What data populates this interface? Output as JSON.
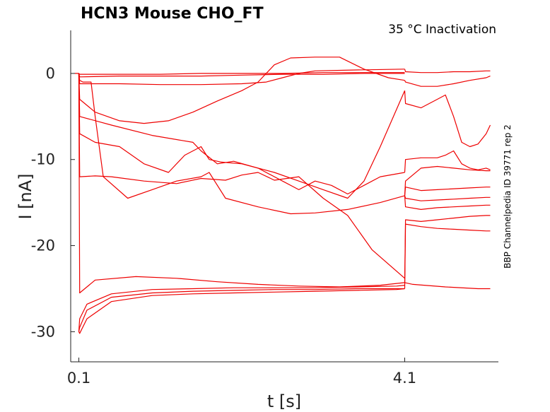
{
  "chart_data": {
    "type": "line",
    "title": "HCN3  Mouse  CHO_FT",
    "subtitle": "35 °C  Inactivation",
    "side_label": "BBP Channelpedia ID 39771 rep 2",
    "xlabel": "t [s]",
    "ylabel": "I [nA]",
    "xlim": [
      0.0,
      5.25
    ],
    "ylim": [
      -33.5,
      5
    ],
    "xticks": [
      0.1,
      4.1
    ],
    "xtick_labels": [
      "0.1",
      "4.1"
    ],
    "yticks": [
      0,
      -10,
      -20,
      -30
    ],
    "ytick_labels": [
      "0",
      "-10",
      "-20",
      "-30"
    ],
    "grid": false,
    "line_color": "#ee0000",
    "series": [
      {
        "x": [
          0.05,
          0.1,
          0.11,
          0.3,
          0.8,
          1.3,
          1.8,
          2.3,
          2.8,
          3.3,
          3.8,
          4.1,
          4.2,
          4.6,
          5.0,
          5.15
        ],
        "y": [
          0,
          0,
          -25.5,
          -24.0,
          -23.6,
          -23.8,
          -24.2,
          -24.5,
          -24.7,
          -24.8,
          -24.6,
          -24.3,
          -24.5,
          -24.8,
          -25.0,
          -25.0
        ]
      },
      {
        "x": [
          0.1,
          0.11,
          0.2,
          0.5,
          1.0,
          1.5,
          2.0,
          2.5,
          3.0,
          3.5,
          4.0,
          4.1
        ],
        "y": [
          -30,
          -28.5,
          -26.8,
          -25.6,
          -25.1,
          -25.0,
          -24.9,
          -24.9,
          -24.9,
          -24.8,
          -24.7,
          -24.6
        ]
      },
      {
        "x": [
          0.1,
          0.11,
          0.2,
          0.5,
          1.0,
          1.5,
          2.0,
          2.5,
          3.0,
          3.5,
          4.0,
          4.1
        ],
        "y": [
          -30,
          -29.5,
          -27.5,
          -26.0,
          -25.5,
          -25.3,
          -25.2,
          -25.1,
          -25.1,
          -25.0,
          -25.0,
          -25.0
        ]
      },
      {
        "x": [
          0.1,
          0.11,
          0.2,
          0.5,
          1.0,
          1.5,
          2.0,
          2.5,
          3.0,
          3.5,
          4.0,
          4.1
        ],
        "y": [
          -30,
          -30.2,
          -28.5,
          -26.5,
          -25.8,
          -25.6,
          -25.5,
          -25.4,
          -25.3,
          -25.2,
          -25.1,
          -25.0
        ]
      },
      {
        "x": [
          0.1,
          0.11,
          0.3,
          0.5,
          0.9,
          1.3,
          1.6,
          1.9,
          2.1,
          2.3,
          2.5,
          2.8,
          3.1,
          3.4,
          3.7,
          4.1
        ],
        "y": [
          0,
          -12.0,
          -11.9,
          -12.0,
          -12.5,
          -12.8,
          -12.2,
          -12.4,
          -11.8,
          -11.5,
          -12.4,
          -12.0,
          -14.5,
          -16.5,
          -20.5,
          -23.8
        ]
      },
      {
        "x": [
          0.1,
          0.11,
          0.15,
          0.25,
          0.3,
          0.4,
          0.7,
          1.0,
          1.3,
          1.6,
          1.7,
          1.9,
          2.3,
          2.7,
          3.0,
          3.4,
          3.8,
          4.1
        ],
        "y": [
          0,
          -0.8,
          -1.0,
          -1.0,
          -5.0,
          -12.0,
          -14.5,
          -13.5,
          -12.5,
          -12.0,
          -11.5,
          -14.5,
          -15.5,
          -16.3,
          -16.2,
          -15.8,
          -15.0,
          -14.2
        ]
      },
      {
        "x": [
          0.1,
          0.11,
          0.5,
          1.0,
          1.5,
          1.6,
          1.8,
          2.0,
          2.3,
          2.6,
          2.8,
          3.0,
          3.2,
          3.4,
          3.6,
          3.8,
          4.1
        ],
        "y": [
          0,
          -5.0,
          -6.0,
          -7.2,
          -8.0,
          -9.0,
          -10.5,
          -10.2,
          -11.0,
          -12.5,
          -13.5,
          -12.5,
          -13.0,
          -14.0,
          -13.0,
          -12.0,
          -11.5
        ]
      },
      {
        "x": [
          0.1,
          0.11,
          0.3,
          0.6,
          0.9,
          1.2,
          1.4,
          1.6,
          1.7,
          1.85,
          2.1,
          2.5,
          2.8,
          3.1,
          3.4,
          3.6,
          3.8,
          4.1
        ],
        "y": [
          0,
          -7.0,
          -8.0,
          -8.5,
          -10.5,
          -11.5,
          -9.5,
          -8.5,
          -10.0,
          -10.3,
          -10.5,
          -11.5,
          -12.5,
          -13.5,
          -14.5,
          -12.5,
          -8.5,
          -2.0
        ]
      },
      {
        "x": [
          0.1,
          0.11,
          0.3,
          0.6,
          0.9,
          1.2,
          1.5,
          1.8,
          2.1,
          2.3,
          2.5,
          2.7,
          3.0,
          3.3,
          3.6,
          3.9,
          4.1
        ],
        "y": [
          0,
          -3.0,
          -4.5,
          -5.5,
          -5.8,
          -5.5,
          -4.5,
          -3.2,
          -2.0,
          -1.0,
          1.0,
          1.8,
          1.9,
          1.9,
          0.5,
          -0.5,
          -0.8
        ]
      },
      {
        "x": [
          0.1,
          0.11,
          0.6,
          1.1,
          1.6,
          2.1,
          2.4,
          2.6,
          2.8,
          3.0,
          3.5,
          4.1
        ],
        "y": [
          0,
          -1.2,
          -1.2,
          -1.3,
          -1.3,
          -1.2,
          -1.0,
          -0.5,
          0.0,
          0.3,
          0.4,
          0.5
        ]
      },
      {
        "x": [
          0.1,
          0.11,
          0.6,
          1.1,
          1.6,
          2.1,
          2.6,
          3.1,
          3.6,
          4.1
        ],
        "y": [
          0,
          -0.4,
          -0.3,
          -0.3,
          -0.3,
          -0.2,
          -0.1,
          -0.1,
          0.0,
          0.0
        ]
      },
      {
        "x": [
          0.1,
          0.11,
          0.6,
          1.1,
          1.6,
          2.1,
          2.6,
          3.1,
          3.6,
          4.1
        ],
        "y": [
          0,
          -0.1,
          -0.1,
          -0.1,
          0.0,
          0.0,
          0.0,
          0.1,
          0.1,
          0.1
        ]
      },
      {
        "x": [
          4.1,
          4.11,
          4.3,
          4.5,
          4.7,
          4.9,
          5.1,
          5.15
        ],
        "y": [
          -14.2,
          -12.5,
          -11.0,
          -10.8,
          -11.0,
          -11.2,
          -11.3,
          -11.3
        ]
      },
      {
        "x": [
          4.1,
          4.11,
          4.3,
          4.5,
          4.7,
          4.9,
          5.1,
          5.15
        ],
        "y": [
          -14.2,
          -13.2,
          -13.6,
          -13.5,
          -13.4,
          -13.3,
          -13.2,
          -13.2
        ]
      },
      {
        "x": [
          4.1,
          4.11,
          4.3,
          4.5,
          4.7,
          4.9,
          5.1,
          5.15
        ],
        "y": [
          -14.2,
          -14.5,
          -14.8,
          -14.7,
          -14.6,
          -14.5,
          -14.4,
          -14.4
        ]
      },
      {
        "x": [
          4.1,
          4.11,
          4.3,
          4.5,
          4.7,
          4.9,
          5.1,
          5.15
        ],
        "y": [
          -14.2,
          -15.5,
          -15.8,
          -15.6,
          -15.5,
          -15.4,
          -15.3,
          -15.3
        ]
      },
      {
        "x": [
          4.1,
          4.11,
          4.3,
          4.5,
          4.7,
          4.9,
          5.1,
          5.15
        ],
        "y": [
          -24.3,
          -17.0,
          -17.2,
          -17.0,
          -16.8,
          -16.6,
          -16.5,
          -16.5
        ]
      },
      {
        "x": [
          4.1,
          4.11,
          4.3,
          4.5,
          4.7,
          4.9,
          5.1,
          5.15
        ],
        "y": [
          -25.0,
          -17.5,
          -17.8,
          -18.0,
          -18.1,
          -18.2,
          -18.3,
          -18.3
        ]
      },
      {
        "x": [
          4.1,
          4.11,
          4.3,
          4.5,
          4.6,
          4.7,
          4.8,
          4.9,
          5.0,
          5.1,
          5.15
        ],
        "y": [
          -11.5,
          -10.0,
          -9.8,
          -9.8,
          -9.5,
          -9.0,
          -10.5,
          -11.0,
          -11.2,
          -11.0,
          -11.2
        ]
      },
      {
        "x": [
          4.1,
          4.11,
          4.3,
          4.5,
          4.6,
          4.7,
          4.8,
          4.9,
          5.0,
          5.1,
          5.15
        ],
        "y": [
          -2.0,
          -3.5,
          -4.0,
          -3.0,
          -2.5,
          -5.0,
          -8.0,
          -8.5,
          -8.2,
          -7.0,
          -6.0
        ]
      },
      {
        "x": [
          4.1,
          4.11,
          4.3,
          4.5,
          4.7,
          4.9,
          5.1,
          5.15
        ],
        "y": [
          -0.8,
          -1.0,
          -1.5,
          -1.5,
          -1.2,
          -0.8,
          -0.5,
          -0.3
        ]
      },
      {
        "x": [
          4.1,
          4.11,
          4.3,
          4.5,
          4.7,
          4.9,
          5.1,
          5.15
        ],
        "y": [
          0.5,
          0.2,
          0.1,
          0.1,
          0.2,
          0.2,
          0.3,
          0.3
        ]
      }
    ]
  }
}
